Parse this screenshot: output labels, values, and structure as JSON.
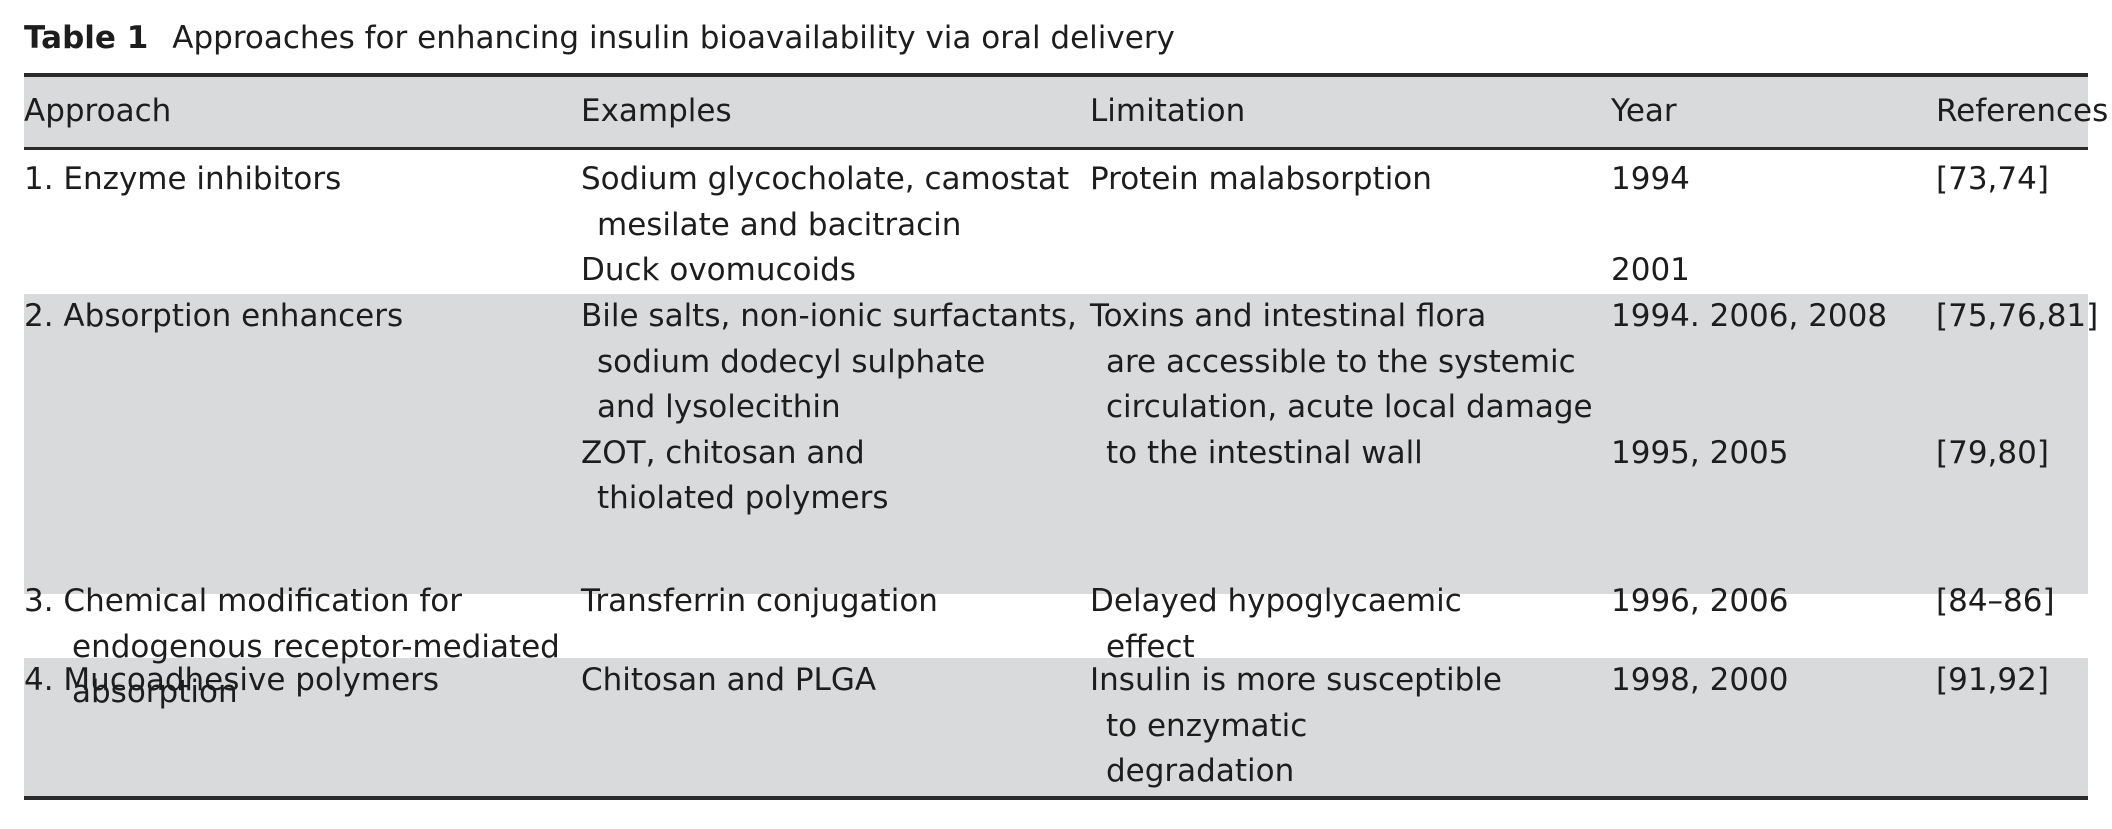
{
  "caption": {
    "label": "Table 1",
    "title": "Approaches for enhancing insulin bioavailability via oral delivery"
  },
  "table": {
    "headers": [
      "Approach",
      "Examples",
      "Limitation",
      "Year",
      "References"
    ],
    "rows": [
      {
        "approach": [
          "1. Enzyme inhibitors"
        ],
        "examples": [
          "Sodium glycocholate, camostat",
          "mesilate and bacitracin",
          "Duck ovomucoids"
        ],
        "limitation": [
          "Protein malabsorption"
        ],
        "year": [
          "1994",
          "2001"
        ],
        "references": [
          "[73,74]"
        ]
      },
      {
        "approach": [
          "2. Absorption enhancers"
        ],
        "examples": [
          "Bile salts, non-ionic surfactants,",
          "sodium dodecyl sulphate",
          "and lysolecithin",
          "ZOT, chitosan and",
          "thiolated polymers"
        ],
        "limitation": [
          "Toxins and intestinal flora",
          "are accessible to the systemic",
          "circulation, acute local damage",
          "to the intestinal wall"
        ],
        "year": [
          "1994. 2006, 2008",
          "1995, 2005"
        ],
        "references": [
          "[75,76,81]",
          "[79,80]"
        ]
      },
      {
        "approach": [
          "3. Chemical modification for",
          "endogenous receptor-mediated",
          "absorption"
        ],
        "examples": [
          "Transferrin conjugation"
        ],
        "limitation": [
          "Delayed hypoglycaemic",
          "effect"
        ],
        "year": [
          "1996, 2006"
        ],
        "references": [
          "[84–86]"
        ]
      },
      {
        "approach": [
          "4. Mucoadhesive polymers"
        ],
        "examples": [
          "Chitosan and PLGA"
        ],
        "limitation": [
          "Insulin is more susceptible",
          "to enzymatic",
          "degradation"
        ],
        "year": [
          "1998, 2000"
        ],
        "references": [
          "[91,92]"
        ]
      }
    ]
  }
}
